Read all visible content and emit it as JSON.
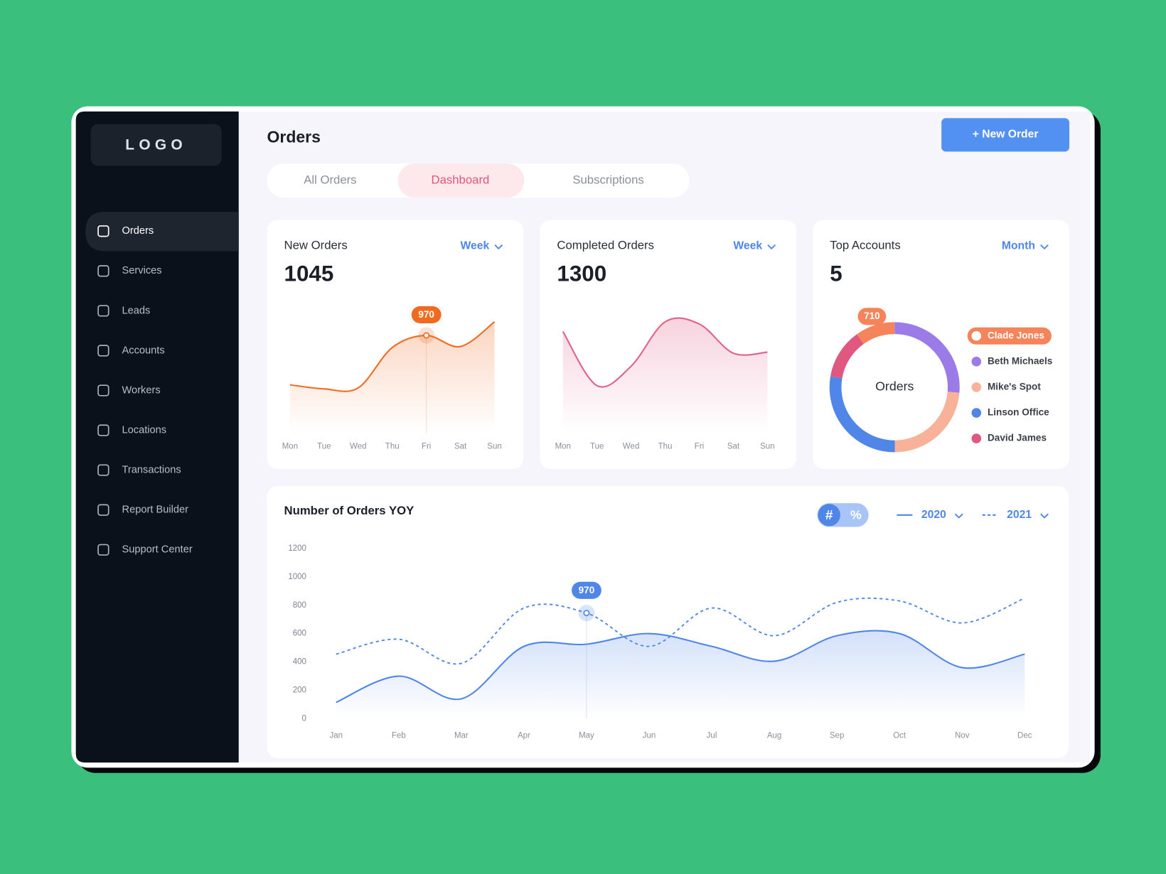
{
  "sidebar": {
    "logo": "LOGO",
    "nav": [
      "Orders",
      "Services",
      "Leads",
      "Accounts",
      "Workers",
      "Locations",
      "Transactions",
      "Report Builder",
      "Support Center"
    ]
  },
  "header": {
    "title": "Orders",
    "button": "+ New Order"
  },
  "tabs": [
    "All Orders",
    "Dashboard",
    "Subscriptions"
  ],
  "chart_data": [
    {
      "type": "area",
      "title": "New Orders",
      "total": 1045,
      "period": "Week",
      "categories": [
        "Mon",
        "Tue",
        "Wed",
        "Thu",
        "Fri",
        "Sat",
        "Sun"
      ],
      "values": [
        480,
        440,
        450,
        850,
        970,
        860,
        1105
      ],
      "color": "#f06a1f"
    },
    {
      "type": "area",
      "title": "Completed Orders",
      "total": 1300,
      "period": "Week",
      "categories": [
        "Mon",
        "Tue",
        "Wed",
        "Thu",
        "Fri",
        "Sat",
        "Sun"
      ],
      "values": [
        940,
        440,
        620,
        1030,
        1010,
        740,
        750
      ],
      "color": "#e0628a"
    },
    {
      "type": "donut",
      "title": "Top Accounts",
      "total": 5,
      "period": "Month",
      "center_label": "Orders",
      "categories": [
        "Clade Jones",
        "Beth Michaels",
        "Mike's Spot",
        "Linson Office",
        "David James"
      ],
      "values": [
        710,
        1900,
        1700,
        2000,
        900
      ],
      "colors": [
        "#f5845a",
        "#9b7be8",
        "#f8b29a",
        "#4f86e8",
        "#e0577f"
      ]
    },
    {
      "type": "line",
      "title": "Number of Orders YOY",
      "toggle": [
        "#",
        "%"
      ],
      "categories": [
        "Jan",
        "Feb",
        "Mar",
        "Apr",
        "May",
        "Jun",
        "Jul",
        "Aug",
        "Sep",
        "Oct",
        "Nov",
        "Dec"
      ],
      "ylim": [
        0,
        1200
      ],
      "yticks": [
        0,
        200,
        400,
        600,
        800,
        1000,
        1200
      ],
      "series": [
        {
          "name": "2020",
          "color": "#4f86e8",
          "dashed": false,
          "values": [
            115,
            300,
            140,
            510,
            525,
            600,
            510,
            405,
            585,
            600,
            360,
            455
          ]
        },
        {
          "name": "2021",
          "color": "#4f86e8",
          "dashed": true,
          "values": [
            455,
            560,
            390,
            780,
            745,
            510,
            780,
            585,
            820,
            830,
            675,
            850
          ]
        }
      ],
      "annotation": 970
    }
  ]
}
